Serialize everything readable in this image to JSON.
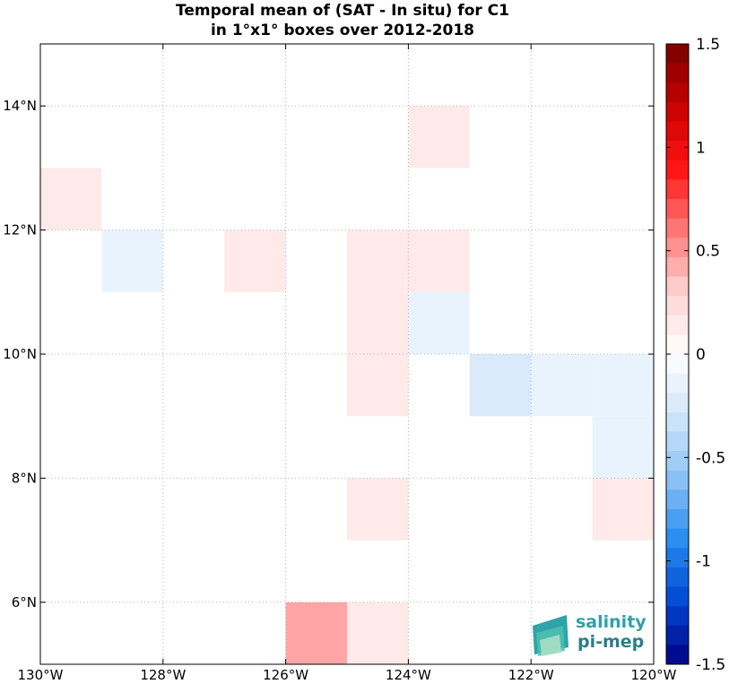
{
  "chart_data": {
    "type": "heatmap",
    "title_line1": "Temporal mean of (SAT - In situ) for C1",
    "title_line2": "in 1°x1° boxes over 2012-2018",
    "xlim": [
      -130,
      -120
    ],
    "ylim": [
      5,
      15
    ],
    "xticks": [
      -130,
      -128,
      -126,
      -124,
      -122,
      -120
    ],
    "xtick_labels": [
      "130°W",
      "128°W",
      "126°W",
      "124°W",
      "122°W",
      "120°W"
    ],
    "yticks": [
      6,
      8,
      10,
      12,
      14
    ],
    "ytick_labels": [
      "6°N",
      "8°N",
      "10°N",
      "12°N",
      "14°N"
    ],
    "grid": true,
    "cells": [
      {
        "lon": -130,
        "lat": 12,
        "value": 0.15
      },
      {
        "lon": -129,
        "lat": 11,
        "value": -0.15
      },
      {
        "lon": -127,
        "lat": 11,
        "value": 0.15
      },
      {
        "lon": -125,
        "lat": 11,
        "value": 0.15
      },
      {
        "lon": -124,
        "lat": 11,
        "value": 0.15
      },
      {
        "lon": -124,
        "lat": 13,
        "value": 0.15
      },
      {
        "lon": -125,
        "lat": 10,
        "value": 0.15
      },
      {
        "lon": -124,
        "lat": 10,
        "value": -0.15
      },
      {
        "lon": -125,
        "lat": 9,
        "value": 0.15
      },
      {
        "lon": -123,
        "lat": 9,
        "value": -0.25
      },
      {
        "lon": -122,
        "lat": 9,
        "value": -0.15
      },
      {
        "lon": -121,
        "lat": 9,
        "value": -0.15
      },
      {
        "lon": -121,
        "lat": 8,
        "value": -0.15
      },
      {
        "lon": -125,
        "lat": 7,
        "value": 0.15
      },
      {
        "lon": -121,
        "lat": 7,
        "value": 0.15
      },
      {
        "lon": -126,
        "lat": 5,
        "value": 0.45
      },
      {
        "lon": -125,
        "lat": 5,
        "value": 0.15
      }
    ],
    "colorbar": {
      "range": [
        -1.5,
        1.5
      ],
      "ticks": [
        1.5,
        1,
        0.5,
        0,
        -0.5,
        -1,
        -1.5
      ],
      "tick_labels": [
        "1.5",
        "1",
        "0.5",
        "0",
        "-0.5",
        "-1",
        "-1.5"
      ],
      "colormap": "blue-white-red"
    }
  },
  "logo": {
    "line1": "salinity",
    "line2": "pi-mep"
  }
}
